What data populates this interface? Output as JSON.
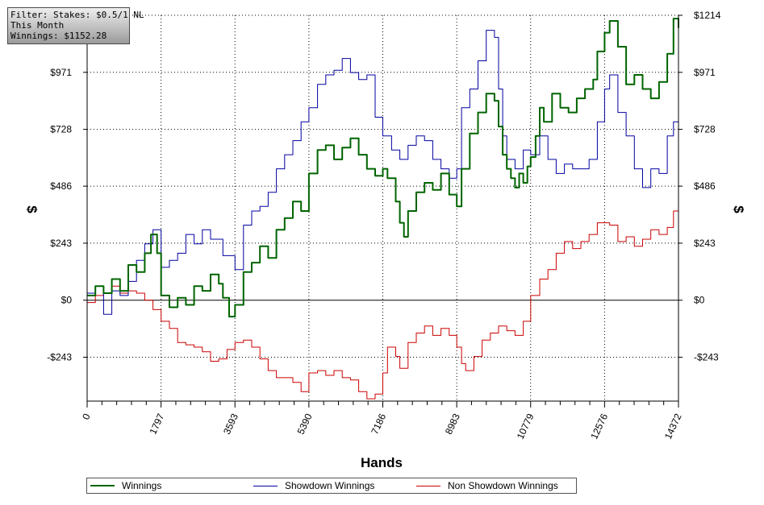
{
  "filter_box": {
    "line1": "Filter: Stakes: $0.5/1 NL",
    "line2": "This Month",
    "line3": "Winnings: $1152.28"
  },
  "colors": {
    "winnings": "#006400",
    "showdown": "#0000a0",
    "non_showdown": "#cc0000",
    "zero_line": "#000000",
    "grid": "#000000"
  },
  "chart_data": {
    "type": "line",
    "xlabel": "Hands",
    "ylabel": "$",
    "xlim": [
      0,
      14372
    ],
    "ylim": [
      -430,
      1214
    ],
    "x_ticks": [
      0,
      1797,
      3593,
      5390,
      7186,
      8983,
      10779,
      12576,
      14372
    ],
    "y_ticks": [
      {
        "value": 1214,
        "label": "$1214"
      },
      {
        "value": 971,
        "label": "$971"
      },
      {
        "value": 728,
        "label": "$728"
      },
      {
        "value": 486,
        "label": "$486"
      },
      {
        "value": 243,
        "label": "$243"
      },
      {
        "value": 0,
        "label": "$0"
      },
      {
        "value": -243,
        "label": "-$243"
      }
    ],
    "legend_position": "bottom",
    "series": [
      {
        "name": "Winnings",
        "color_key": "winnings",
        "points": [
          [
            0,
            20
          ],
          [
            200,
            60
          ],
          [
            400,
            30
          ],
          [
            600,
            90
          ],
          [
            800,
            40
          ],
          [
            1000,
            150
          ],
          [
            1200,
            120
          ],
          [
            1400,
            200
          ],
          [
            1550,
            280
          ],
          [
            1700,
            200
          ],
          [
            1797,
            20
          ],
          [
            2000,
            -30
          ],
          [
            2200,
            10
          ],
          [
            2400,
            -20
          ],
          [
            2600,
            60
          ],
          [
            2800,
            40
          ],
          [
            3000,
            110
          ],
          [
            3200,
            70
          ],
          [
            3300,
            10
          ],
          [
            3450,
            -70
          ],
          [
            3593,
            -20
          ],
          [
            3800,
            120
          ],
          [
            4000,
            160
          ],
          [
            4200,
            230
          ],
          [
            4400,
            180
          ],
          [
            4600,
            300
          ],
          [
            4800,
            350
          ],
          [
            5000,
            420
          ],
          [
            5200,
            380
          ],
          [
            5390,
            540
          ],
          [
            5600,
            640
          ],
          [
            5800,
            660
          ],
          [
            6000,
            600
          ],
          [
            6200,
            650
          ],
          [
            6400,
            690
          ],
          [
            6600,
            620
          ],
          [
            6800,
            560
          ],
          [
            7000,
            530
          ],
          [
            7186,
            560
          ],
          [
            7300,
            520
          ],
          [
            7500,
            420
          ],
          [
            7600,
            330
          ],
          [
            7700,
            270
          ],
          [
            7800,
            380
          ],
          [
            8000,
            460
          ],
          [
            8200,
            500
          ],
          [
            8400,
            470
          ],
          [
            8600,
            540
          ],
          [
            8800,
            450
          ],
          [
            8983,
            400
          ],
          [
            9100,
            560
          ],
          [
            9300,
            710
          ],
          [
            9500,
            800
          ],
          [
            9700,
            880
          ],
          [
            9900,
            850
          ],
          [
            10000,
            740
          ],
          [
            10100,
            620
          ],
          [
            10200,
            560
          ],
          [
            10300,
            520
          ],
          [
            10400,
            480
          ],
          [
            10500,
            540
          ],
          [
            10600,
            500
          ],
          [
            10700,
            570
          ],
          [
            10779,
            610
          ],
          [
            10900,
            700
          ],
          [
            11000,
            820
          ],
          [
            11100,
            760
          ],
          [
            11300,
            880
          ],
          [
            11500,
            820
          ],
          [
            11700,
            800
          ],
          [
            11900,
            860
          ],
          [
            12100,
            900
          ],
          [
            12300,
            940
          ],
          [
            12400,
            1060
          ],
          [
            12576,
            1140
          ],
          [
            12700,
            1190
          ],
          [
            12900,
            1080
          ],
          [
            13100,
            920
          ],
          [
            13300,
            960
          ],
          [
            13500,
            900
          ],
          [
            13700,
            860
          ],
          [
            13900,
            930
          ],
          [
            14100,
            1050
          ],
          [
            14250,
            1200
          ],
          [
            14372,
            1160
          ]
        ]
      },
      {
        "name": "Showdown Winnings",
        "color_key": "showdown",
        "points": [
          [
            0,
            30
          ],
          [
            200,
            60
          ],
          [
            400,
            -60
          ],
          [
            600,
            40
          ],
          [
            800,
            20
          ],
          [
            1000,
            80
          ],
          [
            1200,
            170
          ],
          [
            1400,
            240
          ],
          [
            1600,
            300
          ],
          [
            1797,
            140
          ],
          [
            2000,
            170
          ],
          [
            2200,
            200
          ],
          [
            2400,
            280
          ],
          [
            2600,
            240
          ],
          [
            2800,
            300
          ],
          [
            3000,
            260
          ],
          [
            3300,
            190
          ],
          [
            3593,
            130
          ],
          [
            3800,
            320
          ],
          [
            4000,
            380
          ],
          [
            4200,
            400
          ],
          [
            4400,
            460
          ],
          [
            4600,
            560
          ],
          [
            4800,
            620
          ],
          [
            5000,
            680
          ],
          [
            5200,
            760
          ],
          [
            5390,
            820
          ],
          [
            5600,
            920
          ],
          [
            5800,
            960
          ],
          [
            6000,
            980
          ],
          [
            6200,
            1030
          ],
          [
            6400,
            970
          ],
          [
            6600,
            940
          ],
          [
            6800,
            960
          ],
          [
            7000,
            780
          ],
          [
            7186,
            700
          ],
          [
            7400,
            640
          ],
          [
            7600,
            600
          ],
          [
            7800,
            660
          ],
          [
            8000,
            700
          ],
          [
            8200,
            680
          ],
          [
            8400,
            600
          ],
          [
            8600,
            560
          ],
          [
            8800,
            520
          ],
          [
            8983,
            560
          ],
          [
            9100,
            820
          ],
          [
            9300,
            900
          ],
          [
            9500,
            1020
          ],
          [
            9700,
            1150
          ],
          [
            9900,
            1120
          ],
          [
            10000,
            900
          ],
          [
            10100,
            700
          ],
          [
            10200,
            600
          ],
          [
            10400,
            560
          ],
          [
            10600,
            640
          ],
          [
            10779,
            620
          ],
          [
            11000,
            700
          ],
          [
            11200,
            600
          ],
          [
            11400,
            540
          ],
          [
            11600,
            580
          ],
          [
            11800,
            560
          ],
          [
            12000,
            560
          ],
          [
            12200,
            600
          ],
          [
            12400,
            760
          ],
          [
            12576,
            900
          ],
          [
            12700,
            960
          ],
          [
            12900,
            800
          ],
          [
            13100,
            700
          ],
          [
            13300,
            560
          ],
          [
            13500,
            480
          ],
          [
            13700,
            560
          ],
          [
            13900,
            540
          ],
          [
            14100,
            700
          ],
          [
            14250,
            760
          ],
          [
            14372,
            800
          ]
        ]
      },
      {
        "name": "Non Showdown Winnings",
        "color_key": "non_showdown",
        "points": [
          [
            0,
            -10
          ],
          [
            200,
            20
          ],
          [
            400,
            30
          ],
          [
            600,
            60
          ],
          [
            800,
            30
          ],
          [
            1000,
            40
          ],
          [
            1200,
            30
          ],
          [
            1400,
            0
          ],
          [
            1600,
            -40
          ],
          [
            1797,
            -90
          ],
          [
            2000,
            -120
          ],
          [
            2200,
            -180
          ],
          [
            2400,
            -190
          ],
          [
            2600,
            -200
          ],
          [
            2800,
            -220
          ],
          [
            3000,
            -260
          ],
          [
            3200,
            -250
          ],
          [
            3400,
            -210
          ],
          [
            3593,
            -180
          ],
          [
            3800,
            -170
          ],
          [
            4000,
            -200
          ],
          [
            4200,
            -250
          ],
          [
            4400,
            -300
          ],
          [
            4600,
            -330
          ],
          [
            4800,
            -330
          ],
          [
            5000,
            -350
          ],
          [
            5200,
            -390
          ],
          [
            5390,
            -310
          ],
          [
            5600,
            -300
          ],
          [
            5800,
            -320
          ],
          [
            6000,
            -300
          ],
          [
            6200,
            -330
          ],
          [
            6400,
            -340
          ],
          [
            6600,
            -390
          ],
          [
            6800,
            -420
          ],
          [
            7000,
            -400
          ],
          [
            7186,
            -310
          ],
          [
            7300,
            -200
          ],
          [
            7500,
            -240
          ],
          [
            7600,
            -290
          ],
          [
            7800,
            -180
          ],
          [
            8000,
            -140
          ],
          [
            8200,
            -110
          ],
          [
            8400,
            -150
          ],
          [
            8600,
            -120
          ],
          [
            8800,
            -150
          ],
          [
            8983,
            -200
          ],
          [
            9100,
            -270
          ],
          [
            9200,
            -300
          ],
          [
            9400,
            -240
          ],
          [
            9600,
            -170
          ],
          [
            9800,
            -140
          ],
          [
            10000,
            -110
          ],
          [
            10200,
            -130
          ],
          [
            10400,
            -150
          ],
          [
            10600,
            -90
          ],
          [
            10779,
            20
          ],
          [
            11000,
            90
          ],
          [
            11200,
            130
          ],
          [
            11400,
            200
          ],
          [
            11600,
            250
          ],
          [
            11800,
            220
          ],
          [
            12000,
            250
          ],
          [
            12200,
            280
          ],
          [
            12400,
            330
          ],
          [
            12576,
            330
          ],
          [
            12700,
            320
          ],
          [
            12900,
            250
          ],
          [
            13100,
            270
          ],
          [
            13300,
            230
          ],
          [
            13500,
            260
          ],
          [
            13700,
            300
          ],
          [
            13900,
            280
          ],
          [
            14100,
            310
          ],
          [
            14250,
            380
          ],
          [
            14372,
            340
          ]
        ]
      }
    ]
  }
}
